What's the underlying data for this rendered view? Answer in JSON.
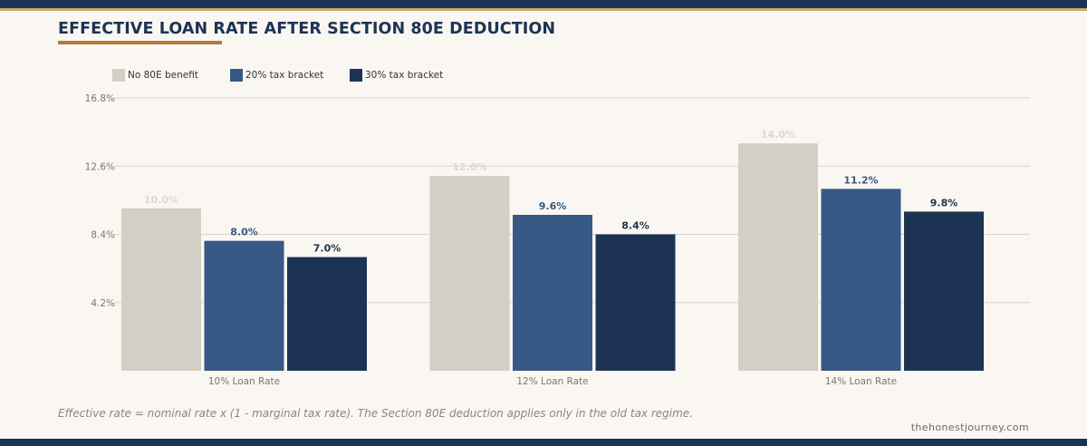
{
  "title": "EFFECTIVE LOAN RATE AFTER SECTION 80E DEDUCTION",
  "footnote": "Effective rate = nominal rate x (1 - marginal tax rate). The Section 80E deduction applies only in the old tax regime.",
  "source": "thehonestjourney.com",
  "colors": {
    "navy": "#1c3354",
    "gold": "#c9a56a",
    "underline": "#b07a3a",
    "grid": "#d8d4cd",
    "tick_text": "#7a7670",
    "no_benefit_label": "#dcd8cf"
  },
  "chart_data": {
    "type": "bar",
    "categories": [
      "10% Loan Rate",
      "12% Loan Rate",
      "14% Loan Rate"
    ],
    "series": [
      {
        "name": "No 80E benefit",
        "color": "#d3cfc4",
        "label_color": "#dcd8cf",
        "values": [
          10.0,
          12.0,
          14.0
        ],
        "labels": [
          "10.0%",
          "12.0%",
          "14.0%"
        ]
      },
      {
        "name": "20% tax bracket",
        "color": "#375985",
        "label_color": "#375985",
        "values": [
          8.0,
          9.6,
          11.2
        ],
        "labels": [
          "8.0%",
          "9.6%",
          "11.2%"
        ]
      },
      {
        "name": "30% tax bracket",
        "color": "#1c3354",
        "label_color": "#1c3354",
        "values": [
          7.0,
          8.4,
          9.8
        ],
        "labels": [
          "7.0%",
          "8.4%",
          "9.8%"
        ]
      }
    ],
    "yticks": [
      4.2,
      8.4,
      12.6,
      16.8
    ],
    "ytick_labels": [
      "4.2%",
      "8.4%",
      "12.6%",
      "16.8%"
    ],
    "ylim": [
      0,
      16.8
    ],
    "xlabel": "",
    "ylabel": "",
    "grid": true,
    "legend_position": "top-left"
  }
}
